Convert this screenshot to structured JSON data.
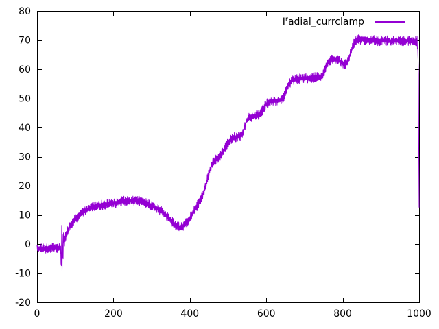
{
  "window": {
    "background": "#ffffff"
  },
  "legend": {
    "prefix": "I",
    "superscript": "r",
    "rest": "adial_currclamp"
  },
  "chart_data": {
    "type": "line",
    "title": "",
    "xlabel": "",
    "ylabel": "",
    "xlim": [
      0,
      1000
    ],
    "ylim": [
      -20,
      80
    ],
    "x_ticks": [
      0,
      200,
      400,
      600,
      800,
      1000
    ],
    "y_ticks": [
      -20,
      -10,
      0,
      10,
      20,
      30,
      40,
      50,
      60,
      70,
      80
    ],
    "grid": false,
    "legend_position": "top-right",
    "axis_color": "#000000",
    "background_color": "#ffffff",
    "series": [
      {
        "name": "I^radial_currclamp",
        "color": "#9400d3",
        "noise_amplitude": 1.7,
        "keypoints": [
          [
            0,
            -1.5
          ],
          [
            20,
            -1.6
          ],
          [
            40,
            -1.4
          ],
          [
            55,
            -1.5
          ],
          [
            62,
            -1.6
          ],
          [
            63.5,
            -11
          ],
          [
            64.5,
            8.5
          ],
          [
            65.5,
            -10.5
          ],
          [
            66.5,
            6
          ],
          [
            67.5,
            -9
          ],
          [
            69,
            2.5
          ],
          [
            71,
            -0.5
          ],
          [
            74,
            2.5
          ],
          [
            80,
            4.5
          ],
          [
            88,
            6.5
          ],
          [
            97,
            8
          ],
          [
            108,
            9.5
          ],
          [
            120,
            11
          ],
          [
            135,
            12
          ],
          [
            150,
            12.8
          ],
          [
            170,
            13.4
          ],
          [
            190,
            13.8
          ],
          [
            210,
            14.3
          ],
          [
            230,
            14.8
          ],
          [
            250,
            15
          ],
          [
            265,
            14.8
          ],
          [
            280,
            14.3
          ],
          [
            300,
            13.2
          ],
          [
            315,
            12.2
          ],
          [
            330,
            10.8
          ],
          [
            342,
            9.2
          ],
          [
            352,
            7.8
          ],
          [
            362,
            6.5
          ],
          [
            372,
            5.8
          ],
          [
            382,
            6.2
          ],
          [
            390,
            7.2
          ],
          [
            400,
            9
          ],
          [
            412,
            11.5
          ],
          [
            425,
            14.5
          ],
          [
            437,
            18
          ],
          [
            445,
            22
          ],
          [
            452,
            25
          ],
          [
            458,
            27.5
          ],
          [
            468,
            29
          ],
          [
            480,
            30
          ],
          [
            490,
            32.5
          ],
          [
            500,
            34.8
          ],
          [
            508,
            36
          ],
          [
            516,
            36.6
          ],
          [
            530,
            37
          ],
          [
            536,
            37.5
          ],
          [
            540,
            38.8
          ],
          [
            545,
            41
          ],
          [
            550,
            42.8
          ],
          [
            556,
            43.4
          ],
          [
            565,
            43.9
          ],
          [
            578,
            44.2
          ],
          [
            586,
            44.8
          ],
          [
            592,
            46.5
          ],
          [
            598,
            47.8
          ],
          [
            605,
            48.6
          ],
          [
            615,
            49
          ],
          [
            630,
            49.2
          ],
          [
            642,
            49.6
          ],
          [
            648,
            51
          ],
          [
            654,
            53.5
          ],
          [
            660,
            55.2
          ],
          [
            668,
            56.2
          ],
          [
            680,
            56.6
          ],
          [
            700,
            56.9
          ],
          [
            720,
            57.1
          ],
          [
            740,
            57.4
          ],
          [
            748,
            58
          ],
          [
            753,
            59.8
          ],
          [
            758,
            61.5
          ],
          [
            764,
            62.8
          ],
          [
            772,
            63.4
          ],
          [
            783,
            63.5
          ],
          [
            792,
            63
          ],
          [
            800,
            61.9
          ],
          [
            806,
            61.6
          ],
          [
            812,
            62.4
          ],
          [
            817,
            64
          ],
          [
            822,
            66
          ],
          [
            827,
            68
          ],
          [
            832,
            69.6
          ],
          [
            838,
            70.3
          ],
          [
            850,
            70.2
          ],
          [
            865,
            70
          ],
          [
            880,
            70.1
          ],
          [
            895,
            69.7
          ],
          [
            910,
            70
          ],
          [
            925,
            69.6
          ],
          [
            940,
            69.9
          ],
          [
            955,
            69.5
          ],
          [
            970,
            69.8
          ],
          [
            985,
            69.6
          ],
          [
            995,
            69.7
          ],
          [
            998,
            62
          ],
          [
            1000,
            11
          ]
        ]
      }
    ]
  }
}
